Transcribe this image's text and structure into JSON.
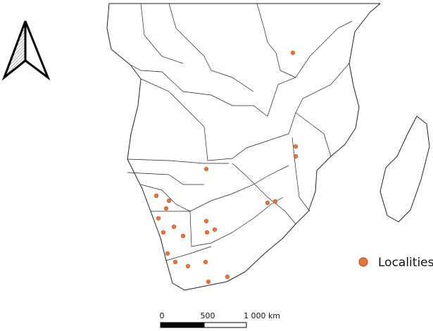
{
  "legend": {
    "label": "Localities"
  },
  "scale_bar": {
    "labels": [
      "0",
      "500",
      "1 000 km"
    ]
  }
}
